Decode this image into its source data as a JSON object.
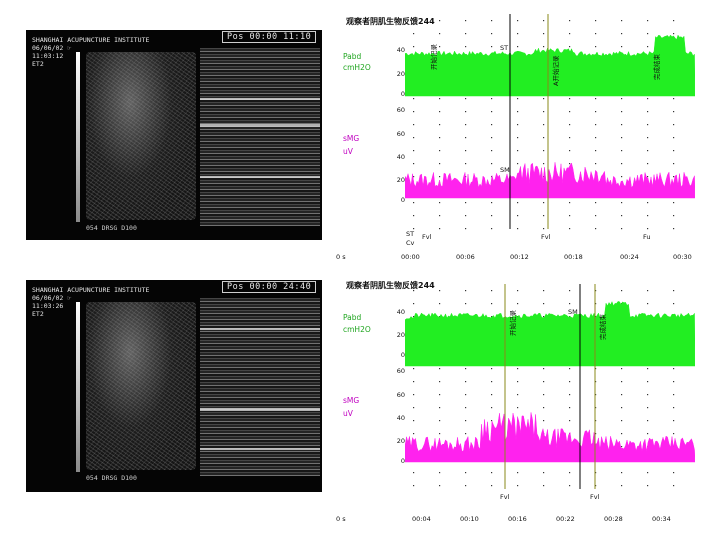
{
  "panel_top": {
    "ultrasound": {
      "header": "SHANGHAI ACUPUNCTURE INSTITUTE\n06/06/02 ☞\n11:03:12\nET2",
      "timer": "Pos 00:00 11:10",
      "footer": "054 DRSG D100"
    },
    "chart": {
      "title": "观察者阴肌生物反馈244",
      "upper_label_1": "Pabd",
      "upper_label_2": "cmH2O",
      "upper_ticks": [
        "40",
        "20",
        "0"
      ],
      "lower_label_1": "sMG",
      "lower_label_2": "uV",
      "lower_ticks": [
        "60",
        "60",
        "40",
        "20",
        "0"
      ],
      "vertical_labels": [
        "开始记录",
        "A开始记录",
        "完成结束"
      ],
      "marker_st": "ST",
      "marker_sm": "SM",
      "bottom_markers": [
        "ST",
        "Cv",
        "Fvl",
        "Fvl",
        "Fu"
      ],
      "scale_label": "0 s",
      "x_ticks": [
        "00:00",
        "00:06",
        "00:12",
        "00:18",
        "00:24",
        "00:30"
      ]
    }
  },
  "panel_bottom": {
    "ultrasound": {
      "header": "SHANGHAI ACUPUNCTURE INSTITUTE\n06/06/02 ☞\n11:03:26\nET2",
      "timer": "Pos 00:00 24:40",
      "footer": "054 DRSG D100"
    },
    "chart": {
      "title": "观察者阴肌生物反馈244",
      "upper_label_1": "Pabd",
      "upper_label_2": "cmH2O",
      "upper_ticks": [
        "40",
        "20",
        "0"
      ],
      "lower_label_1": "sMG",
      "lower_label_2": "uV",
      "lower_ticks": [
        "60",
        "60",
        "40",
        "20",
        "0"
      ],
      "vertical_labels": [
        "开始记录",
        "完成结束"
      ],
      "marker_sm": "SM",
      "bottom_markers": [
        "Fvl",
        "Fvl"
      ],
      "scale_label": "0 s",
      "x_ticks": [
        "00:04",
        "00:10",
        "00:16",
        "00:22",
        "00:28",
        "00:34"
      ]
    }
  },
  "colors": {
    "pressure": "#22ee22",
    "emg": "#ff22ee",
    "cursor": "#000000",
    "event": "#8a8a1a"
  }
}
